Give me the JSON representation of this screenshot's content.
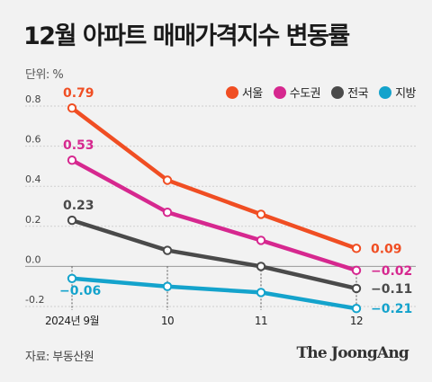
{
  "title": "12월 아파트 매매가격지수 변동률",
  "unit_label": "단위: %",
  "source": "자료: 부동산원",
  "brand": "The JoongAng",
  "chart_data": {
    "type": "line",
    "categories": [
      "2024년 9월",
      "10",
      "11",
      "12"
    ],
    "ylim": [
      -0.2,
      0.8
    ],
    "y_ticks": [
      "0.8",
      "0.6",
      "0.4",
      "0.2",
      "0.0",
      "-0.2"
    ],
    "y_tick_values": [
      0.8,
      0.6,
      0.4,
      0.2,
      0.0,
      -0.2
    ],
    "grid": "horizontal dashed",
    "legend_position": "top-right",
    "series": [
      {
        "name": "서울",
        "color": "#f04e23",
        "values": [
          0.79,
          0.43,
          0.26,
          0.09
        ],
        "first_label": "0.79",
        "last_label": "0.09"
      },
      {
        "name": "수도권",
        "color": "#d6288f",
        "values": [
          0.53,
          0.27,
          0.13,
          -0.02
        ],
        "first_label": "0.53",
        "last_label": "−0.02"
      },
      {
        "name": "전국",
        "color": "#4a4a4a",
        "values": [
          0.23,
          0.08,
          0.0,
          -0.11
        ],
        "first_label": "0.23",
        "last_label": "−0.11"
      },
      {
        "name": "지방",
        "color": "#14a3cc",
        "values": [
          -0.06,
          -0.1,
          -0.13,
          -0.21
        ],
        "first_label": "−0.06",
        "last_label": "−0.21"
      }
    ]
  }
}
